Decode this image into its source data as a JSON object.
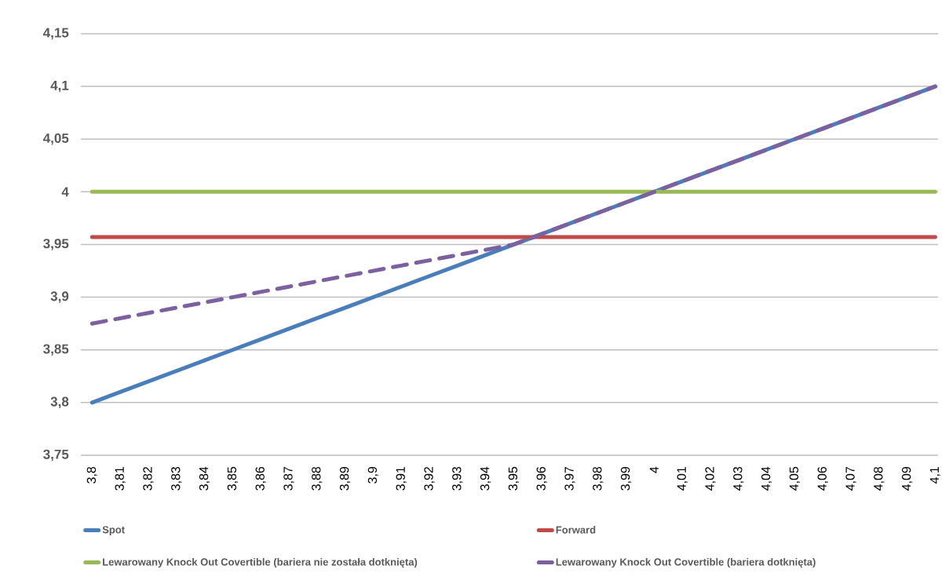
{
  "chart_data": {
    "type": "line",
    "categories": [
      "3,8",
      "3,81",
      "3,82",
      "3,83",
      "3,84",
      "3,85",
      "3,86",
      "3,87",
      "3,88",
      "3,89",
      "3,9",
      "3,91",
      "3,92",
      "3,93",
      "3,94",
      "3,95",
      "3,96",
      "3,97",
      "3,98",
      "3,99",
      "4",
      "4,01",
      "4,02",
      "4,03",
      "4,04",
      "4,05",
      "4,06",
      "4,07",
      "4,08",
      "4,09",
      "4,1"
    ],
    "series": [
      {
        "name": "Spot",
        "color": "#4a7ebb",
        "values": [
          3.8,
          3.81,
          3.82,
          3.83,
          3.84,
          3.85,
          3.86,
          3.87,
          3.88,
          3.89,
          3.9,
          3.91,
          3.92,
          3.93,
          3.94,
          3.95,
          3.96,
          3.97,
          3.98,
          3.99,
          4.0,
          4.01,
          4.02,
          4.03,
          4.04,
          4.05,
          4.06,
          4.07,
          4.08,
          4.09,
          4.1
        ]
      },
      {
        "name": "Forward",
        "color": "#be4b48",
        "values": [
          3.957,
          3.957,
          3.957,
          3.957,
          3.957,
          3.957,
          3.957,
          3.957,
          3.957,
          3.957,
          3.957,
          3.957,
          3.957,
          3.957,
          3.957,
          3.957,
          3.957,
          3.957,
          3.957,
          3.957,
          3.957,
          3.957,
          3.957,
          3.957,
          3.957,
          3.957,
          3.957,
          3.957,
          3.957,
          3.957,
          3.957
        ]
      },
      {
        "name": "Lewarowany Knock Out Covertible (bariera nie została dotknięta)",
        "color": "#98b954",
        "values": [
          4.0,
          4.0,
          4.0,
          4.0,
          4.0,
          4.0,
          4.0,
          4.0,
          4.0,
          4.0,
          4.0,
          4.0,
          4.0,
          4.0,
          4.0,
          4.0,
          4.0,
          4.0,
          4.0,
          4.0,
          4.0,
          4.0,
          4.0,
          4.0,
          4.0,
          4.0,
          4.0,
          4.0,
          4.0,
          4.0,
          4.0
        ]
      },
      {
        "name": "Lewarowany Knock Out Covertible (bariera dotknięta)",
        "color": "#7d60a0",
        "line_style": "dashed",
        "values": [
          3.875,
          3.88,
          3.885,
          3.89,
          3.895,
          3.9,
          3.905,
          3.91,
          3.915,
          3.92,
          3.925,
          3.93,
          3.935,
          3.94,
          3.945,
          3.95,
          3.96,
          3.97,
          3.98,
          3.99,
          4.0,
          4.01,
          4.02,
          4.03,
          4.04,
          4.05,
          4.06,
          4.07,
          4.08,
          4.09,
          4.1
        ]
      }
    ],
    "ylim": [
      3.75,
      4.15
    ],
    "yticks": [
      {
        "value": 3.75,
        "label": "3,75"
      },
      {
        "value": 3.8,
        "label": "3,8"
      },
      {
        "value": 3.85,
        "label": "3,85"
      },
      {
        "value": 3.9,
        "label": "3,9"
      },
      {
        "value": 3.95,
        "label": "3,95"
      },
      {
        "value": 4.0,
        "label": "4"
      },
      {
        "value": 4.05,
        "label": "4,05"
      },
      {
        "value": 4.1,
        "label": "4,1"
      },
      {
        "value": 4.15,
        "label": "4,15"
      }
    ],
    "grid": "y",
    "legend": "bottom",
    "marker": "none",
    "line_style": "solid"
  }
}
